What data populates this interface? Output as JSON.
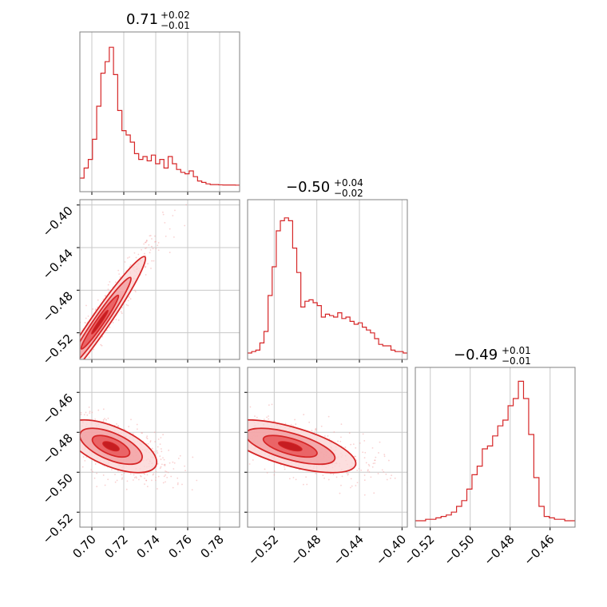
{
  "chart_data": {
    "type": "corner",
    "color": "#d62728",
    "parameters": [
      {
        "title_value": "0.71",
        "title_plus": "+0.02",
        "title_minus": "−0.01",
        "range": [
          0.6925,
          0.7925
        ],
        "ticks": [
          0.7,
          0.72,
          0.74,
          0.76,
          0.78
        ],
        "tick_labels": [
          "0.70",
          "0.72",
          "0.74",
          "0.76",
          "0.78"
        ]
      },
      {
        "title_value": "−0.50",
        "title_plus": "+0.04",
        "title_minus": "−0.02",
        "range": [
          -0.545,
          -0.395
        ],
        "ticks": [
          -0.52,
          -0.48,
          -0.44,
          -0.4
        ],
        "tick_labels": [
          "−0.52",
          "−0.48",
          "−0.44",
          "−0.40"
        ]
      },
      {
        "title_value": "−0.49",
        "title_plus": "+0.01",
        "title_minus": "−0.01",
        "range": [
          -0.5275,
          -0.4475
        ],
        "ticks": [
          -0.52,
          -0.5,
          -0.48,
          -0.46
        ],
        "tick_labels": [
          "−0.52",
          "−0.50",
          "−0.48",
          "−0.46"
        ]
      }
    ],
    "row_tick_labels": {
      "row1": [
        "−0.40",
        "−0.44",
        "−0.48",
        "−0.52"
      ],
      "row2": [
        "−0.46",
        "−0.48",
        "−0.50",
        "−0.52"
      ]
    },
    "histograms": [
      {
        "param": 0,
        "density": [
          0.05,
          0.12,
          0.18,
          0.32,
          0.55,
          0.78,
          0.86,
          0.96,
          0.77,
          0.52,
          0.38,
          0.35,
          0.3,
          0.22,
          0.18,
          0.2,
          0.17,
          0.21,
          0.15,
          0.18,
          0.12,
          0.2,
          0.15,
          0.11,
          0.09,
          0.08,
          0.1,
          0.06,
          0.03,
          0.02,
          0.01,
          0.005,
          0.005,
          0.003,
          0.002,
          0.002,
          0.002,
          0.001
        ]
      },
      {
        "param": 1,
        "density": [
          0.0,
          0.01,
          0.02,
          0.07,
          0.15,
          0.4,
          0.6,
          0.85,
          0.92,
          0.94,
          0.92,
          0.73,
          0.56,
          0.32,
          0.36,
          0.37,
          0.35,
          0.33,
          0.25,
          0.27,
          0.26,
          0.25,
          0.28,
          0.24,
          0.25,
          0.22,
          0.2,
          0.21,
          0.18,
          0.16,
          0.14,
          0.1,
          0.06,
          0.05,
          0.05,
          0.02,
          0.01,
          0.01,
          0.0
        ]
      },
      {
        "param": 2,
        "density": [
          0.0,
          0.0,
          0.01,
          0.01,
          0.02,
          0.03,
          0.04,
          0.06,
          0.1,
          0.14,
          0.22,
          0.32,
          0.38,
          0.5,
          0.52,
          0.59,
          0.66,
          0.7,
          0.8,
          0.85,
          0.97,
          0.85,
          0.6,
          0.3,
          0.1,
          0.03,
          0.02,
          0.01,
          0.01,
          0.0,
          0.0
        ]
      }
    ],
    "joint": [
      {
        "x_param": 0,
        "y_param": 1,
        "correlation": 0.97,
        "center": [
          0.705,
          -0.51
        ],
        "sd": [
          0.013,
          0.028
        ]
      },
      {
        "x_param": 0,
        "y_param": 2,
        "correlation": -0.6,
        "center": [
          0.712,
          -0.487
        ],
        "sd": [
          0.013,
          0.006
        ]
      },
      {
        "x_param": 1,
        "y_param": 2,
        "correlation": -0.65,
        "center": [
          -0.505,
          -0.487
        ],
        "sd": [
          0.028,
          0.006
        ]
      }
    ]
  }
}
